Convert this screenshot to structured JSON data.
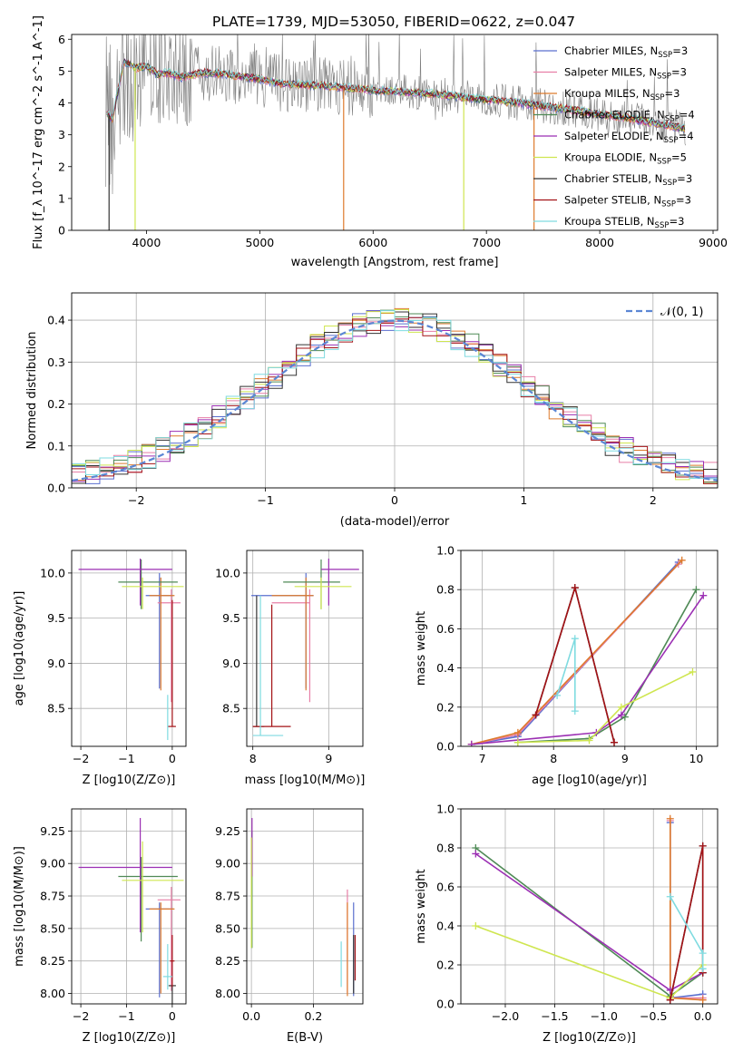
{
  "figure_title": "PLATE=1739, MJD=53050, FIBERID=0622, z=0.047",
  "models": [
    {
      "name": "Chabrier MILES",
      "nssp": "3",
      "color": "#5a6fcf"
    },
    {
      "name": "Salpeter MILES",
      "nssp": "3",
      "color": "#e77fa6"
    },
    {
      "name": "Kroupa MILES",
      "nssp": "3",
      "color": "#de7a2c"
    },
    {
      "name": "Chabrier ELODIE",
      "nssp": "4",
      "color": "#4f8a56"
    },
    {
      "name": "Salpeter ELODIE",
      "nssp": "4",
      "color": "#9b2fb3"
    },
    {
      "name": "Kroupa ELODIE",
      "nssp": "5",
      "color": "#cfe650"
    },
    {
      "name": "Chabrier STELIB",
      "nssp": "3",
      "color": "#333333"
    },
    {
      "name": "Salpeter STELIB",
      "nssp": "3",
      "color": "#a31216"
    },
    {
      "name": "Kroupa STELIB",
      "nssp": "3",
      "color": "#7fdbe0"
    }
  ],
  "chart_data": [
    {
      "id": "spectrum",
      "type": "line",
      "title": "PLATE=1739, MJD=53050, FIBERID=0622, z=0.047",
      "xlabel": "wavelength [Angstrom, rest frame]",
      "ylabel": "Flux [f_λ 10^-17 erg cm^-2 s^-1 A^-1]",
      "xlim": [
        3340,
        9040
      ],
      "ylim": [
        0,
        6.15
      ],
      "xticks": [
        "4000",
        "5000",
        "6000",
        "7000",
        "8000",
        "9000"
      ],
      "yticks": [
        "0",
        "1",
        "2",
        "3",
        "4",
        "5",
        "6"
      ],
      "legend": "right",
      "data_color": "#7f7f7f",
      "model_flux": {
        "x": [
          3650,
          3700,
          3800,
          3900,
          4000,
          4100,
          4200,
          4300,
          4500,
          4700,
          5000,
          5200,
          5500,
          6000,
          6500,
          7000,
          7400,
          7800,
          8200,
          8750
        ],
        "y": [
          3.7,
          3.5,
          5.3,
          5.1,
          5.15,
          4.9,
          4.95,
          4.8,
          4.95,
          4.9,
          4.75,
          4.6,
          4.55,
          4.4,
          4.3,
          4.1,
          3.95,
          3.75,
          3.55,
          3.2
        ]
      }
    },
    {
      "id": "residuals",
      "type": "bar",
      "xlabel": "(data-model)/error",
      "ylabel": "Normed distribution",
      "xlim": [
        -2.5,
        2.5
      ],
      "ylim": [
        0,
        0.465
      ],
      "xticks": [
        "−2",
        "−1",
        "0",
        "1",
        "2"
      ],
      "yticks": [
        "0.0",
        "0.1",
        "0.2",
        "0.3",
        "0.4"
      ],
      "legend": "top-right",
      "reference_label": "𝒩(0, 1)",
      "reference_color": "#5b86d4"
    },
    {
      "id": "age-vs-Z",
      "type": "scatter",
      "xlabel": "Z [log10(Z/Z⊙)]",
      "ylabel": "age [log10(age/yr)]",
      "xlim": [
        -2.2,
        0.3
      ],
      "ylim": [
        8.08,
        10.25
      ],
      "xticks": [
        "−2",
        "−1",
        "0"
      ],
      "yticks": [
        "8.5",
        "9.0",
        "9.5",
        "10.0"
      ],
      "points": [
        {
          "model": 0,
          "x": -0.28,
          "y": 9.75,
          "xerr": [
            0.3,
            0.3
          ],
          "yerr": [
            1.03,
            0.25
          ]
        },
        {
          "model": 1,
          "x": -0.02,
          "y": 9.67,
          "xerr": [
            0.3,
            0.2
          ],
          "yerr": [
            1.1,
            0.15
          ]
        },
        {
          "model": 2,
          "x": -0.25,
          "y": 9.75,
          "xerr": [
            0.25,
            0.3
          ],
          "yerr": [
            1.05,
            0.2
          ]
        },
        {
          "model": 3,
          "x": -0.68,
          "y": 9.9,
          "xerr": [
            0.5,
            0.8
          ],
          "yerr": [
            0.3,
            0.25
          ]
        },
        {
          "model": 4,
          "x": -0.7,
          "y": 10.04,
          "xerr": [
            1.35,
            0.7
          ],
          "yerr": [
            0.4,
            0.12
          ]
        },
        {
          "model": 5,
          "x": -0.65,
          "y": 9.85,
          "xerr": [
            0.45,
            0.9
          ],
          "yerr": [
            0.25,
            0.1
          ]
        },
        {
          "model": 6,
          "x": -0.02,
          "y": 8.18,
          "xerr": [
            0.0,
            0.0
          ],
          "yerr": [
            0.0,
            0.0
          ]
        },
        {
          "model": 7,
          "x": 0.0,
          "y": 8.3,
          "xerr": [
            0.1,
            0.08
          ],
          "yerr": [
            0.0,
            1.4
          ]
        },
        {
          "model": 8,
          "x": -0.1,
          "y": 8.35,
          "xerr": [
            0.0,
            0.0
          ],
          "yerr": [
            0.2,
            0.3
          ]
        }
      ]
    },
    {
      "id": "age-vs-mass",
      "type": "scatter",
      "xlabel": "mass [log10(M/M⊙)]",
      "ylabel": "",
      "xlim": [
        7.92,
        9.45
      ],
      "ylim": [
        8.08,
        10.25
      ],
      "xticks": [
        "8",
        "9"
      ],
      "yticks": [
        "8.5",
        "9.0",
        "9.5",
        "10.0"
      ],
      "points": [
        {
          "model": 0,
          "x": 8.7,
          "y": 9.75,
          "xerr": [
            0.72,
            0.1
          ],
          "yerr": [
            1.03,
            0.25
          ]
        },
        {
          "model": 1,
          "x": 8.75,
          "y": 9.67,
          "xerr": [
            0.5,
            0.0
          ],
          "yerr": [
            1.1,
            0.15
          ]
        },
        {
          "model": 2,
          "x": 8.7,
          "y": 9.75,
          "xerr": [
            0.45,
            0.1
          ],
          "yerr": [
            1.05,
            0.2
          ]
        },
        {
          "model": 3,
          "x": 8.9,
          "y": 9.9,
          "xerr": [
            0.5,
            0.25
          ],
          "yerr": [
            0.3,
            0.25
          ]
        },
        {
          "model": 4,
          "x": 9.0,
          "y": 10.04,
          "xerr": [
            0.1,
            0.4
          ],
          "yerr": [
            0.4,
            0.12
          ]
        },
        {
          "model": 5,
          "x": 8.9,
          "y": 9.85,
          "xerr": [
            0.35,
            0.4
          ],
          "yerr": [
            0.25,
            0.1
          ]
        },
        {
          "model": 6,
          "x": 8.05,
          "y": 8.3,
          "xerr": [
            0.05,
            0.1
          ],
          "yerr": [
            0.0,
            1.45
          ]
        },
        {
          "model": 7,
          "x": 8.25,
          "y": 8.3,
          "xerr": [
            0.25,
            0.25
          ],
          "yerr": [
            0.0,
            1.35
          ]
        },
        {
          "model": 8,
          "x": 8.1,
          "y": 8.2,
          "xerr": [
            0.1,
            0.3
          ],
          "yerr": [
            0.0,
            1.55
          ]
        }
      ]
    },
    {
      "id": "mass-weight-vs-age",
      "type": "line",
      "xlabel": "age [log10(age/yr)]",
      "ylabel": "mass weight",
      "xlim": [
        6.7,
        10.3
      ],
      "ylim": [
        0,
        1.0
      ],
      "xticks": [
        "7",
        "8",
        "9",
        "10"
      ],
      "yticks": [
        "0.0",
        "0.2",
        "0.4",
        "0.6",
        "0.8",
        "1.0"
      ],
      "series": [
        {
          "model": 0,
          "x": [
            6.85,
            7.5,
            9.75
          ],
          "y": [
            0.01,
            0.05,
            0.94
          ]
        },
        {
          "model": 1,
          "x": [
            6.85,
            7.5,
            9.75
          ],
          "y": [
            0.01,
            0.06,
            0.93
          ]
        },
        {
          "model": 2,
          "x": [
            6.85,
            7.5,
            9.8
          ],
          "y": [
            0.01,
            0.07,
            0.95
          ]
        },
        {
          "model": 3,
          "x": [
            7.5,
            8.5,
            9.0,
            10.0
          ],
          "y": [
            0.02,
            0.04,
            0.15,
            0.8
          ]
        },
        {
          "model": 4,
          "x": [
            6.85,
            8.6,
            8.95,
            10.1
          ],
          "y": [
            0.01,
            0.07,
            0.16,
            0.77
          ]
        },
        {
          "model": 5,
          "x": [
            7.5,
            8.5,
            8.95,
            9.95
          ],
          "y": [
            0.02,
            0.03,
            0.2,
            0.38
          ]
        },
        {
          "model": 6,
          "x": [
            7.75,
            8.3,
            8.85
          ],
          "y": [
            0.16,
            0.81,
            0.02
          ]
        },
        {
          "model": 7,
          "x": [
            7.75,
            8.3,
            8.85
          ],
          "y": [
            0.16,
            0.81,
            0.02
          ]
        },
        {
          "model": 8,
          "x": [
            8.05,
            8.3,
            8.3
          ],
          "y": [
            0.26,
            0.55,
            0.18
          ]
        }
      ]
    },
    {
      "id": "mass-vs-Z",
      "type": "scatter",
      "xlabel": "Z [log10(Z/Z⊙)]",
      "ylabel": "mass [log10(M/M⊙)]",
      "xlim": [
        -2.2,
        0.3
      ],
      "ylim": [
        7.92,
        9.42
      ],
      "xticks": [
        "−2",
        "−1",
        "0"
      ],
      "yticks": [
        "8.00",
        "8.25",
        "8.50",
        "8.75",
        "9.00",
        "9.25"
      ],
      "points": [
        {
          "model": 0,
          "x": -0.28,
          "y": 8.65,
          "xerr": [
            0.3,
            0.3
          ],
          "yerr": [
            0.68,
            0.05
          ]
        },
        {
          "model": 1,
          "x": -0.02,
          "y": 8.72,
          "xerr": [
            0.3,
            0.2
          ],
          "yerr": [
            0.7,
            0.1
          ]
        },
        {
          "model": 2,
          "x": -0.25,
          "y": 8.65,
          "xerr": [
            0.25,
            0.3
          ],
          "yerr": [
            0.65,
            0.05
          ]
        },
        {
          "model": 3,
          "x": -0.68,
          "y": 8.9,
          "xerr": [
            0.5,
            0.8
          ],
          "yerr": [
            0.5,
            0.15
          ]
        },
        {
          "model": 4,
          "x": -0.7,
          "y": 8.97,
          "xerr": [
            1.35,
            0.7
          ],
          "yerr": [
            0.5,
            0.38
          ]
        },
        {
          "model": 5,
          "x": -0.65,
          "y": 8.87,
          "xerr": [
            0.45,
            0.9
          ],
          "yerr": [
            0.4,
            0.3
          ]
        },
        {
          "model": 6,
          "x": 0.0,
          "y": 8.06,
          "xerr": [
            0.08,
            0.08
          ],
          "yerr": [
            0.15,
            0.0
          ]
        },
        {
          "model": 7,
          "x": 0.0,
          "y": 8.25,
          "xerr": [
            0.05,
            0.05
          ],
          "yerr": [
            0.2,
            0.2
          ]
        },
        {
          "model": 8,
          "x": -0.1,
          "y": 8.13,
          "xerr": [
            0.1,
            0.1
          ],
          "yerr": [
            0.1,
            0.25
          ]
        }
      ]
    },
    {
      "id": "mass-vs-EBV",
      "type": "scatter",
      "xlabel": "E(B-V)",
      "ylabel": "",
      "xlim": [
        -0.015,
        0.36
      ],
      "ylim": [
        7.92,
        9.42
      ],
      "xticks": [
        "0.0",
        "0.2"
      ],
      "yticks": [
        "8.00",
        "8.25",
        "8.50",
        "8.75",
        "9.00",
        "9.25"
      ],
      "points": [
        {
          "model": 0,
          "x": 0.33,
          "y": 8.4,
          "xerr": [
            0.0,
            0.0
          ],
          "yerr": [
            0.42,
            0.3
          ]
        },
        {
          "model": 1,
          "x": 0.31,
          "y": 8.4,
          "xerr": [
            0.0,
            0.0
          ],
          "yerr": [
            0.4,
            0.4
          ]
        },
        {
          "model": 2,
          "x": 0.31,
          "y": 8.4,
          "xerr": [
            0.0,
            0.0
          ],
          "yerr": [
            0.42,
            0.3
          ]
        },
        {
          "model": 3,
          "x": 0.002,
          "y": 8.7,
          "xerr": [
            0.0,
            0.0
          ],
          "yerr": [
            0.35,
            0.55
          ]
        },
        {
          "model": 4,
          "x": 0.002,
          "y": 9.0,
          "xerr": [
            0.0,
            0.0
          ],
          "yerr": [
            0.1,
            0.35
          ]
        },
        {
          "model": 5,
          "x": 0.0,
          "y": 8.8,
          "xerr": [
            0.0,
            0.0
          ],
          "yerr": [
            0.45,
            0.4
          ]
        },
        {
          "model": 6,
          "x": 0.33,
          "y": 8.15,
          "xerr": [
            0.0,
            0.0
          ],
          "yerr": [
            0.15,
            0.3
          ]
        },
        {
          "model": 7,
          "x": 0.335,
          "y": 8.3,
          "xerr": [
            0.0,
            0.0
          ],
          "yerr": [
            0.2,
            0.15
          ]
        },
        {
          "model": 8,
          "x": 0.29,
          "y": 8.15,
          "xerr": [
            0.0,
            0.0
          ],
          "yerr": [
            0.1,
            0.25
          ]
        }
      ]
    },
    {
      "id": "mass-weight-vs-Z",
      "type": "line",
      "xlabel": "Z [log10(Z/Z⊙)]",
      "ylabel": "mass weight",
      "xlim": [
        -2.45,
        0.15
      ],
      "ylim": [
        0,
        1.0
      ],
      "xticks": [
        "−2.0",
        "−1.5",
        "−1.0",
        "−0.5",
        "0.0"
      ],
      "yticks": [
        "0.0",
        "0.2",
        "0.4",
        "0.6",
        "0.8",
        "1.0"
      ],
      "series": [
        {
          "model": 0,
          "x": [
            -0.33,
            -0.33,
            0.0
          ],
          "y": [
            0.93,
            0.03,
            0.05
          ]
        },
        {
          "model": 1,
          "x": [
            -0.33,
            -0.33,
            0.0
          ],
          "y": [
            0.94,
            0.03,
            0.03
          ]
        },
        {
          "model": 2,
          "x": [
            -0.33,
            -0.33,
            0.0
          ],
          "y": [
            0.95,
            0.03,
            0.02
          ]
        },
        {
          "model": 3,
          "x": [
            -2.3,
            -0.33,
            0.0
          ],
          "y": [
            0.8,
            0.04,
            0.16
          ]
        },
        {
          "model": 4,
          "x": [
            -2.3,
            -0.33,
            0.0
          ],
          "y": [
            0.77,
            0.07,
            0.16
          ]
        },
        {
          "model": 5,
          "x": [
            -2.3,
            -0.33,
            0.0
          ],
          "y": [
            0.4,
            0.03,
            0.2
          ]
        },
        {
          "model": 6,
          "x": [
            -0.33,
            0.0,
            0.0
          ],
          "y": [
            0.02,
            0.81,
            0.16
          ]
        },
        {
          "model": 7,
          "x": [
            -0.33,
            0.0,
            0.0
          ],
          "y": [
            0.02,
            0.81,
            0.16
          ]
        },
        {
          "model": 8,
          "x": [
            -0.33,
            0.0,
            0.0
          ],
          "y": [
            0.55,
            0.26,
            0.18
          ]
        }
      ]
    }
  ]
}
